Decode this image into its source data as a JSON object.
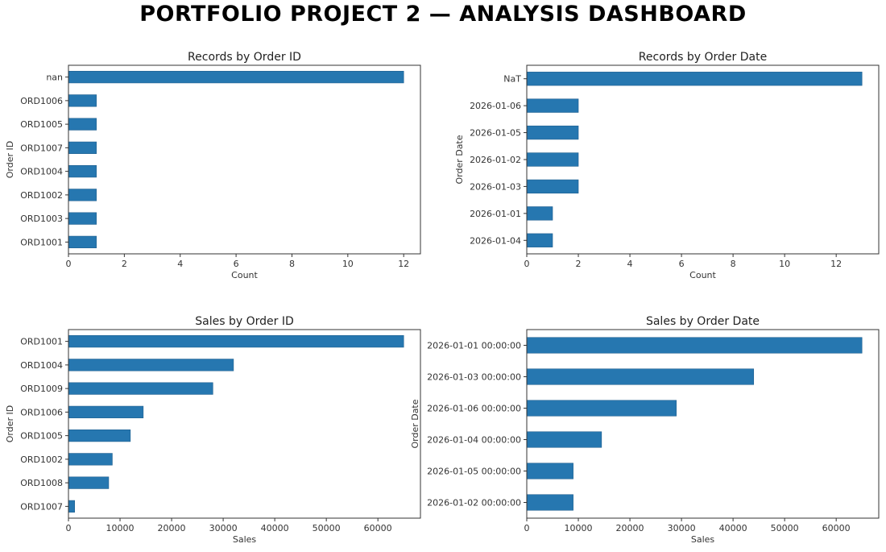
{
  "dashboard": {
    "title": "PORTFOLIO PROJECT 2 — ANALYSIS DASHBOARD"
  },
  "colors": {
    "bar": "#2677b0",
    "bar_edge": "#1f5f8f"
  },
  "chart_data": [
    {
      "id": "records-by-order-id",
      "type": "bar",
      "orientation": "horizontal",
      "title": "Records by Order ID",
      "xlabel": "Count",
      "ylabel": "Order ID",
      "categories": [
        "nan",
        "ORD1006",
        "ORD1005",
        "ORD1007",
        "ORD1004",
        "ORD1002",
        "ORD1003",
        "ORD1001"
      ],
      "values": [
        12,
        1,
        1,
        1,
        1,
        1,
        1,
        1
      ],
      "xlim": [
        0,
        12.6
      ],
      "xticks": [
        0,
        2,
        4,
        6,
        8,
        10,
        12
      ],
      "xtick_labels": [
        "0",
        "2",
        "4",
        "6",
        "8",
        "10",
        "12"
      ],
      "grid": false,
      "legend": "none"
    },
    {
      "id": "records-by-order-date",
      "type": "bar",
      "orientation": "horizontal",
      "title": "Records by Order Date",
      "xlabel": "Count",
      "ylabel": "Order Date",
      "categories": [
        "NaT",
        "2026-01-06",
        "2026-01-05",
        "2026-01-02",
        "2026-01-03",
        "2026-01-01",
        "2026-01-04"
      ],
      "values": [
        13,
        2,
        2,
        2,
        2,
        1,
        1
      ],
      "xlim": [
        0,
        13.65
      ],
      "xticks": [
        0,
        2,
        4,
        6,
        8,
        10,
        12
      ],
      "xtick_labels": [
        "0",
        "2",
        "4",
        "6",
        "8",
        "10",
        "12"
      ],
      "grid": false,
      "legend": "none"
    },
    {
      "id": "sales-by-order-id",
      "type": "bar",
      "orientation": "horizontal",
      "title": "Sales by Order ID",
      "xlabel": "Sales",
      "ylabel": "Order ID",
      "categories": [
        "ORD1001",
        "ORD1004",
        "ORD1009",
        "ORD1006",
        "ORD1005",
        "ORD1002",
        "ORD1008",
        "ORD1007"
      ],
      "values": [
        65000,
        32000,
        28000,
        14500,
        12000,
        8500,
        7800,
        1200
      ],
      "xlim": [
        0,
        68250
      ],
      "xticks": [
        0,
        10000,
        20000,
        30000,
        40000,
        50000,
        60000
      ],
      "xtick_labels": [
        "0",
        "10000",
        "20000",
        "30000",
        "40000",
        "50000",
        "60000"
      ],
      "grid": false,
      "legend": "none"
    },
    {
      "id": "sales-by-order-date",
      "type": "bar",
      "orientation": "horizontal",
      "title": "Sales by Order Date",
      "xlabel": "Sales",
      "ylabel": "Order Date",
      "categories": [
        "2026-01-01 00:00:00",
        "2026-01-03 00:00:00",
        "2026-01-06 00:00:00",
        "2026-01-04 00:00:00",
        "2026-01-05 00:00:00",
        "2026-01-02 00:00:00"
      ],
      "values": [
        65000,
        44000,
        29000,
        14500,
        9000,
        9000
      ],
      "xlim": [
        0,
        68250
      ],
      "xticks": [
        0,
        10000,
        20000,
        30000,
        40000,
        50000,
        60000
      ],
      "xtick_labels": [
        "0",
        "10000",
        "20000",
        "30000",
        "40000",
        "50000",
        "60000"
      ],
      "grid": false,
      "legend": "none"
    }
  ]
}
